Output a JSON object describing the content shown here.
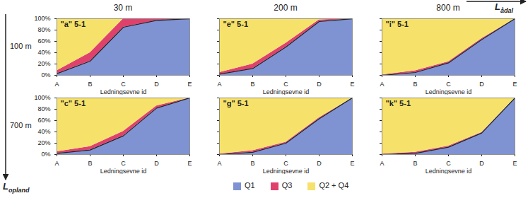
{
  "columns": [
    "30 m",
    "200 m",
    "800 m"
  ],
  "rows": [
    "100 m",
    "700 m"
  ],
  "column_axis": {
    "symbol": "L",
    "subscript": "ådal"
  },
  "row_axis": {
    "symbol": "L",
    "subscript": "opland"
  },
  "chart_data": [
    {
      "type": "area",
      "title": "\"a\" 5-1",
      "x_label": "Ledningsevne id",
      "categories": [
        "A",
        "B",
        "C",
        "D",
        "E"
      ],
      "stacked": true,
      "tick_labels": true,
      "ylim": [
        0,
        100
      ],
      "yticks": [
        {
          "value": 0,
          "label": "0%"
        },
        {
          "value": 20,
          "label": "20%"
        },
        {
          "value": 40,
          "label": "40%"
        },
        {
          "value": 60,
          "label": "60%"
        },
        {
          "value": 80,
          "label": "80%"
        },
        {
          "value": 100,
          "label": "100%"
        }
      ],
      "series": [
        {
          "name": "Q1",
          "color": "#7f92d2",
          "values": [
            3,
            25,
            85,
            97,
            100
          ]
        },
        {
          "name": "Q3",
          "color": "#e0416c",
          "values": [
            5,
            15,
            15,
            3,
            0
          ]
        },
        {
          "name": "Q2 + Q4",
          "color": "#f6e26a",
          "values": [
            92,
            60,
            0,
            0,
            0
          ]
        }
      ]
    },
    {
      "type": "area",
      "title": "\"e\" 5-1",
      "x_label": "Ledningsevne id",
      "categories": [
        "A",
        "B",
        "C",
        "D",
        "E"
      ],
      "stacked": true,
      "tick_labels": "x",
      "ylim": [
        0,
        100
      ],
      "yticks": [
        {
          "value": 0,
          "label": "0%"
        },
        {
          "value": 20,
          "label": "20%"
        },
        {
          "value": 40,
          "label": "40%"
        },
        {
          "value": 60,
          "label": "60%"
        },
        {
          "value": 80,
          "label": "80%"
        },
        {
          "value": 100,
          "label": "100%"
        }
      ],
      "series": [
        {
          "name": "Q1",
          "color": "#7f92d2",
          "values": [
            2,
            12,
            50,
            95,
            100
          ]
        },
        {
          "name": "Q3",
          "color": "#e0416c",
          "values": [
            3,
            8,
            7,
            3,
            0
          ]
        },
        {
          "name": "Q2 + Q4",
          "color": "#f6e26a",
          "values": [
            95,
            80,
            43,
            2,
            0
          ]
        }
      ]
    },
    {
      "type": "area",
      "title": "\"i\" 5-1",
      "x_label": "Ledningsevne id",
      "categories": [
        "A",
        "B",
        "C",
        "D",
        "E"
      ],
      "stacked": true,
      "tick_labels": "x",
      "ylim": [
        0,
        100
      ],
      "yticks": [
        {
          "value": 0,
          "label": "0%"
        },
        {
          "value": 20,
          "label": "20%"
        },
        {
          "value": 40,
          "label": "40%"
        },
        {
          "value": 60,
          "label": "60%"
        },
        {
          "value": 80,
          "label": "80%"
        },
        {
          "value": 100,
          "label": "100%"
        }
      ],
      "series": [
        {
          "name": "Q1",
          "color": "#7f92d2",
          "values": [
            0,
            5,
            22,
            63,
            100
          ]
        },
        {
          "name": "Q3",
          "color": "#e0416c",
          "values": [
            1,
            3,
            2,
            2,
            0
          ]
        },
        {
          "name": "Q2 + Q4",
          "color": "#f6e26a",
          "values": [
            99,
            92,
            76,
            35,
            0
          ]
        }
      ]
    },
    {
      "type": "area",
      "title": "\"c\" 5-1",
      "x_label": "Ledningsevne id",
      "categories": [
        "A",
        "B",
        "C",
        "D",
        "E"
      ],
      "stacked": true,
      "tick_labels": true,
      "ylim": [
        0,
        100
      ],
      "yticks": [
        {
          "value": 0,
          "label": "0%"
        },
        {
          "value": 20,
          "label": "20%"
        },
        {
          "value": 40,
          "label": "40%"
        },
        {
          "value": 60,
          "label": "60%"
        },
        {
          "value": 80,
          "label": "80%"
        },
        {
          "value": 100,
          "label": "100%"
        }
      ],
      "series": [
        {
          "name": "Q1",
          "color": "#7f92d2",
          "values": [
            2,
            8,
            33,
            82,
            100
          ]
        },
        {
          "name": "Q3",
          "color": "#e0416c",
          "values": [
            3,
            6,
            8,
            4,
            0
          ]
        },
        {
          "name": "Q2 + Q4",
          "color": "#f6e26a",
          "values": [
            95,
            86,
            59,
            14,
            0
          ]
        }
      ]
    },
    {
      "type": "area",
      "title": "\"g\" 5-1",
      "x_label": "Ledningsevne id",
      "categories": [
        "A",
        "B",
        "C",
        "D",
        "E"
      ],
      "stacked": true,
      "tick_labels": "x",
      "ylim": [
        0,
        100
      ],
      "yticks": [
        {
          "value": 0,
          "label": "0%"
        },
        {
          "value": 20,
          "label": "20%"
        },
        {
          "value": 40,
          "label": "40%"
        },
        {
          "value": 60,
          "label": "60%"
        },
        {
          "value": 80,
          "label": "80%"
        },
        {
          "value": 100,
          "label": "100%"
        }
      ],
      "series": [
        {
          "name": "Q1",
          "color": "#7f92d2",
          "values": [
            0,
            4,
            20,
            63,
            100
          ]
        },
        {
          "name": "Q3",
          "color": "#e0416c",
          "values": [
            1,
            3,
            2,
            2,
            0
          ]
        },
        {
          "name": "Q2 + Q4",
          "color": "#f6e26a",
          "values": [
            99,
            93,
            78,
            35,
            0
          ]
        }
      ]
    },
    {
      "type": "area",
      "title": "\"k\" 5-1",
      "x_label": "Ledningsevne id",
      "categories": [
        "A",
        "B",
        "C",
        "D",
        "E"
      ],
      "stacked": true,
      "tick_labels": "x",
      "ylim": [
        0,
        100
      ],
      "yticks": [
        {
          "value": 0,
          "label": "0%"
        },
        {
          "value": 20,
          "label": "20%"
        },
        {
          "value": 40,
          "label": "40%"
        },
        {
          "value": 60,
          "label": "60%"
        },
        {
          "value": 80,
          "label": "80%"
        },
        {
          "value": 100,
          "label": "100%"
        }
      ],
      "series": [
        {
          "name": "Q1",
          "color": "#7f92d2",
          "values": [
            0,
            2,
            13,
            38,
            100
          ]
        },
        {
          "name": "Q3",
          "color": "#e0416c",
          "values": [
            1,
            2,
            2,
            1,
            0
          ]
        },
        {
          "name": "Q2 + Q4",
          "color": "#f6e26a",
          "values": [
            99,
            96,
            85,
            61,
            0
          ]
        }
      ]
    }
  ]
}
